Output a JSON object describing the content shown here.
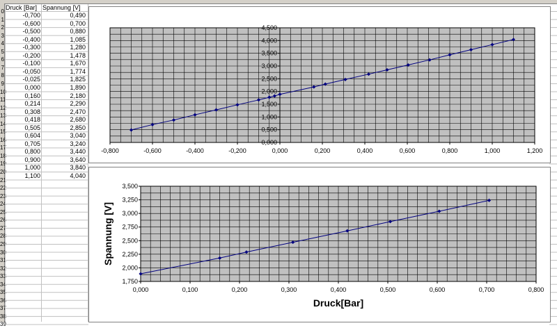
{
  "table": {
    "headers": [
      "Druck [Bar]",
      "Spannung [V]"
    ],
    "rows": [
      [
        "-0,700",
        "0,490"
      ],
      [
        "-0,600",
        "0,700"
      ],
      [
        "-0,500",
        "0,880"
      ],
      [
        "-0,400",
        "1,085"
      ],
      [
        "-0,300",
        "1,280"
      ],
      [
        "-0,200",
        "1,478"
      ],
      [
        "-0,100",
        "1,670"
      ],
      [
        "-0,050",
        "1,774"
      ],
      [
        "-0,025",
        "1,825"
      ],
      [
        "0,000",
        "1,890"
      ],
      [
        "0,160",
        "2,180"
      ],
      [
        "0,214",
        "2,290"
      ],
      [
        "0,308",
        "2,470"
      ],
      [
        "0,418",
        "2,680"
      ],
      [
        "0,505",
        "2,850"
      ],
      [
        "0,604",
        "3,040"
      ],
      [
        "0,705",
        "3,240"
      ],
      [
        "0,800",
        "3,440"
      ],
      [
        "0,900",
        "3,640"
      ],
      [
        "1,000",
        "3,840"
      ],
      [
        "1,100",
        "4,040"
      ]
    ]
  },
  "row_numbers": [
    "0",
    "1",
    "2",
    "3",
    "4",
    "5",
    "6",
    "7",
    "8",
    "9",
    "10",
    "11",
    "12",
    "13",
    "14",
    "15",
    "16",
    "17",
    "18",
    "19",
    "20",
    "21",
    "22",
    "23",
    "24",
    "25",
    "26",
    "27",
    "28",
    "29",
    "30",
    "31",
    "32",
    "33",
    "34",
    "35",
    "36",
    "37",
    "38",
    "39"
  ],
  "colors": {
    "plot_bg": "#c0c0c0",
    "line": "#00007f",
    "grid": "#000000"
  },
  "chart_data": [
    {
      "type": "scatter",
      "xlabel": "",
      "ylabel": "",
      "xlim": [
        -0.8,
        1.2
      ],
      "ylim": [
        0,
        4.5
      ],
      "xticks": [
        "-0,800",
        "-0,600",
        "-0,400",
        "-0,200",
        "0,000",
        "0,200",
        "0,400",
        "0,600",
        "0,800",
        "1,000",
        "1,200"
      ],
      "yticks": [
        "0,000",
        "0,500",
        "1,000",
        "1,500",
        "2,000",
        "2,500",
        "3,000",
        "3,500",
        "4,000",
        "4,500"
      ],
      "grid": true,
      "series": [
        {
          "x": [
            -0.7,
            -0.6,
            -0.5,
            -0.4,
            -0.3,
            -0.2,
            -0.1,
            -0.05,
            -0.025,
            0,
            0.16,
            0.214,
            0.308,
            0.418,
            0.505,
            0.604,
            0.705,
            0.8,
            0.9,
            1.0,
            1.1
          ],
          "y": [
            0.49,
            0.7,
            0.88,
            1.085,
            1.28,
            1.478,
            1.67,
            1.774,
            1.825,
            1.89,
            2.18,
            2.29,
            2.47,
            2.68,
            2.85,
            3.04,
            3.24,
            3.44,
            3.64,
            3.84,
            4.04
          ]
        }
      ]
    },
    {
      "type": "scatter",
      "xlabel": "Druck[Bar]",
      "ylabel": "Spannung [V]",
      "xlim": [
        0,
        0.8
      ],
      "ylim": [
        1.75,
        3.5
      ],
      "xticks": [
        "0,000",
        "0,100",
        "0,200",
        "0,300",
        "0,400",
        "0,500",
        "0,600",
        "0,700",
        "0,800"
      ],
      "yticks": [
        "1,750",
        "2,000",
        "2,250",
        "2,500",
        "2,750",
        "3,000",
        "3,250",
        "3,500"
      ],
      "grid": true,
      "series": [
        {
          "x": [
            0,
            0.16,
            0.214,
            0.308,
            0.418,
            0.505,
            0.604,
            0.705
          ],
          "y": [
            1.89,
            2.18,
            2.29,
            2.47,
            2.68,
            2.85,
            3.04,
            3.24
          ]
        }
      ]
    }
  ]
}
